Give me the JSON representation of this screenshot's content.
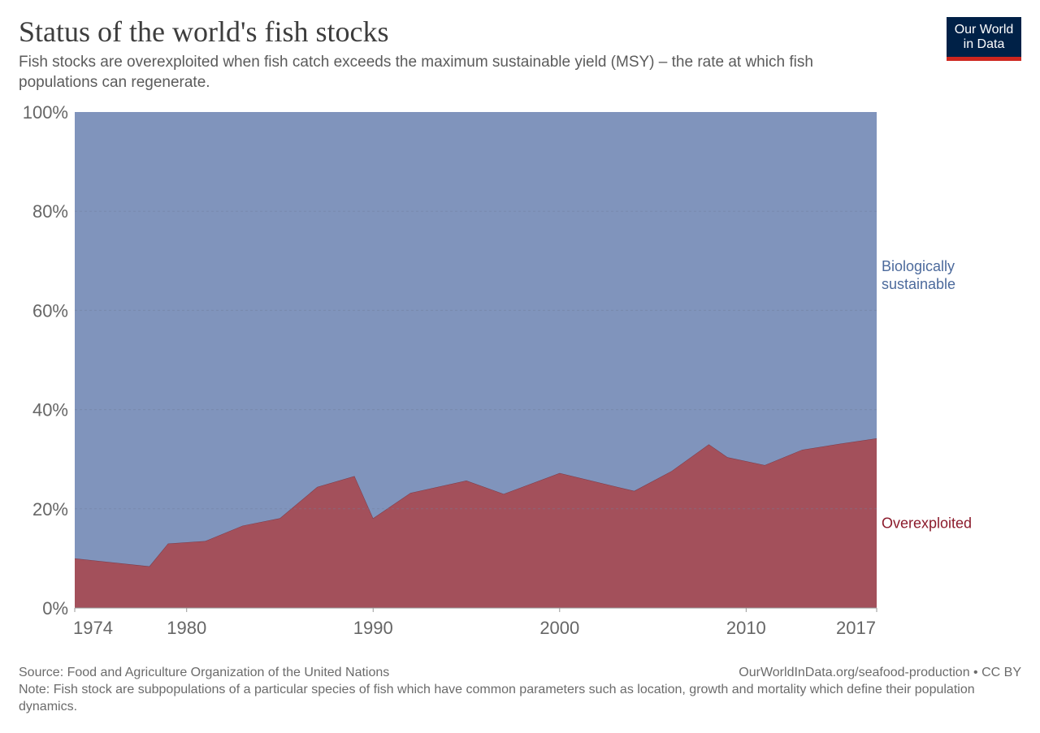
{
  "title": "Status of the world's fish stocks",
  "subtitle": "Fish stocks are overexploited when fish catch exceeds the maximum sustainable yield (MSY) – the rate at which fish populations can regenerate.",
  "logo": {
    "line1": "Our World",
    "line2": "in Data"
  },
  "footer": {
    "source": "Source: Food and Agriculture Organization of the United Nations",
    "url": "OurWorldInData.org/seafood-production • CC BY",
    "note": "Note: Fish stock are subpopulations of a particular species of fish which have common parameters such as location, growth and mortality which define their population dynamics."
  },
  "chart_data": {
    "type": "area",
    "stacked": true,
    "normalized": true,
    "x": [
      1974,
      1978,
      1979,
      1981,
      1983,
      1985,
      1987,
      1989,
      1990,
      1992,
      1995,
      1997,
      2000,
      2004,
      2006,
      2008,
      2009,
      2011,
      2013,
      2015,
      2017
    ],
    "series": [
      {
        "name": "Overexploited",
        "color": "#a3505b",
        "label_color": "#8b1a2b",
        "values": [
          10.0,
          8.4,
          13.0,
          13.5,
          16.6,
          18.1,
          24.4,
          26.6,
          18.1,
          23.2,
          25.7,
          23.0,
          27.2,
          23.6,
          27.6,
          33.0,
          30.4,
          28.8,
          31.9,
          33.1,
          34.2
        ]
      },
      {
        "name": "Biologically sustainable",
        "color": "#8094bc",
        "label_color": "#4c6a9c",
        "values": [
          90.0,
          91.6,
          87.0,
          86.5,
          83.4,
          81.9,
          75.6,
          73.4,
          81.9,
          76.8,
          74.3,
          77.0,
          72.8,
          76.4,
          72.4,
          67.0,
          69.6,
          71.2,
          68.1,
          66.9,
          65.8
        ]
      }
    ],
    "legend_labels": [
      {
        "series": "Biologically sustainable",
        "line1": "Biologically",
        "line2": "sustainable"
      },
      {
        "series": "Overexploited",
        "line1": "Overexploited",
        "line2": ""
      }
    ],
    "xlim": [
      1974,
      2017
    ],
    "ylim": [
      0,
      100
    ],
    "x_ticks": [
      1974,
      1980,
      1990,
      2000,
      2010,
      2017
    ],
    "y_ticks": [
      0,
      20,
      40,
      60,
      80,
      100
    ],
    "y_tick_labels": [
      "0%",
      "20%",
      "40%",
      "60%",
      "80%",
      "100%"
    ],
    "grid": true,
    "legend_placement": "right"
  }
}
